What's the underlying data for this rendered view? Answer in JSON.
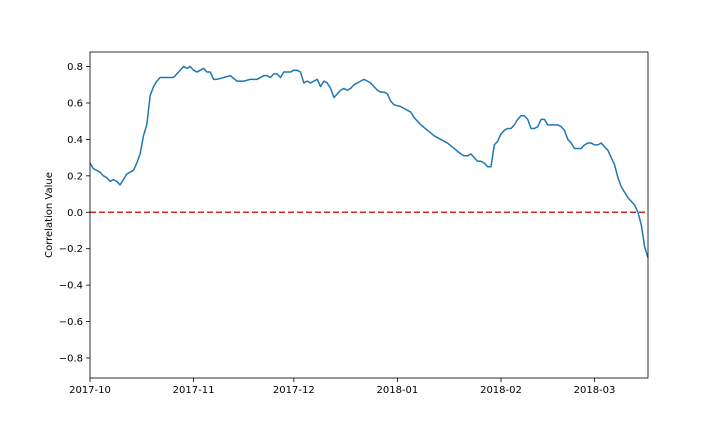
{
  "chart_data": {
    "type": "line",
    "title": "",
    "xlabel": "",
    "ylabel": "Correlation Value",
    "xlim": [
      "2017-10-01",
      "2018-03-17"
    ],
    "ylim": [
      -0.91,
      0.88
    ],
    "x_ticks": [
      "2017-10",
      "2017-11",
      "2017-12",
      "2018-01",
      "2018-02",
      "2018-03"
    ],
    "x_tick_dates": [
      "2017-10-01",
      "2017-11-01",
      "2017-12-01",
      "2018-01-01",
      "2018-02-01",
      "2018-03-01"
    ],
    "y_ticks": [
      0.8,
      0.6,
      0.4,
      0.2,
      0.0,
      -0.2,
      -0.4,
      -0.6,
      -0.8
    ],
    "y_tick_labels": [
      "0.8",
      "0.6",
      "0.4",
      "0.2",
      "0.0",
      "−0.2",
      "−0.4",
      "−0.6",
      "−0.8"
    ],
    "grid": false,
    "reference_line": {
      "y": 0.0,
      "color": "#d62728",
      "style": "dashed"
    },
    "series": [
      {
        "color": "#1f77b4",
        "points": [
          [
            "2017-10-01",
            0.27
          ],
          [
            "2017-10-02",
            0.24
          ],
          [
            "2017-10-03",
            0.23
          ],
          [
            "2017-10-04",
            0.22
          ],
          [
            "2017-10-05",
            0.2
          ],
          [
            "2017-10-06",
            0.19
          ],
          [
            "2017-10-07",
            0.17
          ],
          [
            "2017-10-08",
            0.18
          ],
          [
            "2017-10-09",
            0.17
          ],
          [
            "2017-10-10",
            0.15
          ],
          [
            "2017-10-11",
            0.18
          ],
          [
            "2017-10-12",
            0.21
          ],
          [
            "2017-10-13",
            0.22
          ],
          [
            "2017-10-14",
            0.23
          ],
          [
            "2017-10-15",
            0.27
          ],
          [
            "2017-10-16",
            0.32
          ],
          [
            "2017-10-17",
            0.42
          ],
          [
            "2017-10-18",
            0.48
          ],
          [
            "2017-10-19",
            0.64
          ],
          [
            "2017-10-20",
            0.69
          ],
          [
            "2017-10-21",
            0.72
          ],
          [
            "2017-10-22",
            0.74
          ],
          [
            "2017-10-24",
            0.74
          ],
          [
            "2017-10-26",
            0.74
          ],
          [
            "2017-10-27",
            0.76
          ],
          [
            "2017-10-28",
            0.78
          ],
          [
            "2017-10-29",
            0.8
          ],
          [
            "2017-10-30",
            0.79
          ],
          [
            "2017-10-31",
            0.8
          ],
          [
            "2017-11-01",
            0.78
          ],
          [
            "2017-11-02",
            0.77
          ],
          [
            "2017-11-03",
            0.78
          ],
          [
            "2017-11-04",
            0.79
          ],
          [
            "2017-11-05",
            0.77
          ],
          [
            "2017-11-06",
            0.77
          ],
          [
            "2017-11-07",
            0.73
          ],
          [
            "2017-11-08",
            0.73
          ],
          [
            "2017-11-10",
            0.74
          ],
          [
            "2017-11-12",
            0.75
          ],
          [
            "2017-11-14",
            0.72
          ],
          [
            "2017-11-16",
            0.72
          ],
          [
            "2017-11-18",
            0.73
          ],
          [
            "2017-11-20",
            0.73
          ],
          [
            "2017-11-22",
            0.75
          ],
          [
            "2017-11-23",
            0.75
          ],
          [
            "2017-11-24",
            0.74
          ],
          [
            "2017-11-25",
            0.76
          ],
          [
            "2017-11-26",
            0.76
          ],
          [
            "2017-11-27",
            0.74
          ],
          [
            "2017-11-28",
            0.77
          ],
          [
            "2017-11-29",
            0.77
          ],
          [
            "2017-11-30",
            0.77
          ],
          [
            "2017-12-01",
            0.78
          ],
          [
            "2017-12-02",
            0.78
          ],
          [
            "2017-12-03",
            0.77
          ],
          [
            "2017-12-04",
            0.71
          ],
          [
            "2017-12-05",
            0.72
          ],
          [
            "2017-12-06",
            0.71
          ],
          [
            "2017-12-07",
            0.72
          ],
          [
            "2017-12-08",
            0.73
          ],
          [
            "2017-12-09",
            0.69
          ],
          [
            "2017-12-10",
            0.72
          ],
          [
            "2017-12-11",
            0.71
          ],
          [
            "2017-12-12",
            0.68
          ],
          [
            "2017-12-13",
            0.63
          ],
          [
            "2017-12-14",
            0.65
          ],
          [
            "2017-12-15",
            0.67
          ],
          [
            "2017-12-16",
            0.68
          ],
          [
            "2017-12-17",
            0.67
          ],
          [
            "2017-12-18",
            0.68
          ],
          [
            "2017-12-19",
            0.7
          ],
          [
            "2017-12-20",
            0.71
          ],
          [
            "2017-12-21",
            0.72
          ],
          [
            "2017-12-22",
            0.73
          ],
          [
            "2017-12-23",
            0.72
          ],
          [
            "2017-12-24",
            0.71
          ],
          [
            "2017-12-25",
            0.69
          ],
          [
            "2017-12-26",
            0.67
          ],
          [
            "2017-12-27",
            0.66
          ],
          [
            "2017-12-28",
            0.66
          ],
          [
            "2017-12-29",
            0.65
          ],
          [
            "2017-12-30",
            0.61
          ],
          [
            "2017-12-31",
            0.59
          ],
          [
            "2018-01-02",
            0.58
          ],
          [
            "2018-01-04",
            0.56
          ],
          [
            "2018-01-05",
            0.55
          ],
          [
            "2018-01-06",
            0.52
          ],
          [
            "2018-01-08",
            0.48
          ],
          [
            "2018-01-10",
            0.45
          ],
          [
            "2018-01-12",
            0.42
          ],
          [
            "2018-01-14",
            0.4
          ],
          [
            "2018-01-16",
            0.38
          ],
          [
            "2018-01-18",
            0.35
          ],
          [
            "2018-01-20",
            0.32
          ],
          [
            "2018-01-21",
            0.31
          ],
          [
            "2018-01-22",
            0.31
          ],
          [
            "2018-01-23",
            0.32
          ],
          [
            "2018-01-24",
            0.3
          ],
          [
            "2018-01-25",
            0.28
          ],
          [
            "2018-01-26",
            0.28
          ],
          [
            "2018-01-27",
            0.27
          ],
          [
            "2018-01-28",
            0.25
          ],
          [
            "2018-01-29",
            0.25
          ],
          [
            "2018-01-30",
            0.37
          ],
          [
            "2018-01-31",
            0.39
          ],
          [
            "2018-02-01",
            0.43
          ],
          [
            "2018-02-02",
            0.45
          ],
          [
            "2018-02-03",
            0.46
          ],
          [
            "2018-02-04",
            0.46
          ],
          [
            "2018-02-05",
            0.48
          ],
          [
            "2018-02-06",
            0.51
          ],
          [
            "2018-02-07",
            0.53
          ],
          [
            "2018-02-08",
            0.53
          ],
          [
            "2018-02-09",
            0.51
          ],
          [
            "2018-02-10",
            0.46
          ],
          [
            "2018-02-11",
            0.46
          ],
          [
            "2018-02-12",
            0.47
          ],
          [
            "2018-02-13",
            0.51
          ],
          [
            "2018-02-14",
            0.51
          ],
          [
            "2018-02-15",
            0.48
          ],
          [
            "2018-02-16",
            0.48
          ],
          [
            "2018-02-18",
            0.48
          ],
          [
            "2018-02-19",
            0.47
          ],
          [
            "2018-02-20",
            0.45
          ],
          [
            "2018-02-21",
            0.4
          ],
          [
            "2018-02-22",
            0.38
          ],
          [
            "2018-02-23",
            0.35
          ],
          [
            "2018-02-24",
            0.35
          ],
          [
            "2018-02-25",
            0.35
          ],
          [
            "2018-02-26",
            0.37
          ],
          [
            "2018-02-27",
            0.38
          ],
          [
            "2018-02-28",
            0.38
          ],
          [
            "2018-03-01",
            0.37
          ],
          [
            "2018-03-02",
            0.37
          ],
          [
            "2018-03-03",
            0.38
          ],
          [
            "2018-03-04",
            0.36
          ],
          [
            "2018-03-05",
            0.34
          ],
          [
            "2018-03-06",
            0.3
          ],
          [
            "2018-03-07",
            0.26
          ],
          [
            "2018-03-08",
            0.19
          ],
          [
            "2018-03-09",
            0.14
          ],
          [
            "2018-03-10",
            0.11
          ],
          [
            "2018-03-11",
            0.08
          ],
          [
            "2018-03-12",
            0.06
          ],
          [
            "2018-03-13",
            0.04
          ],
          [
            "2018-03-14",
            0.0
          ],
          [
            "2018-03-15",
            -0.07
          ],
          [
            "2018-03-16",
            -0.19
          ],
          [
            "2018-03-17",
            -0.25
          ]
        ]
      }
    ]
  }
}
